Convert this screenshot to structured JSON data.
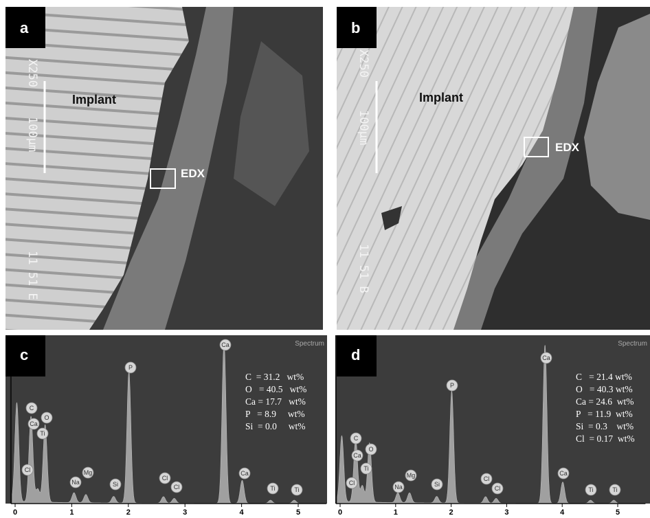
{
  "panels": [
    {
      "label": "a",
      "implant": "Implant",
      "edx": "EDX",
      "magnification": "X250",
      "scale": "100µm",
      "code": "11 51 E"
    },
    {
      "label": "b",
      "implant": "Implant",
      "edx": "EDX",
      "magnification": "X250",
      "scale": "100µm",
      "code": "11 51 B"
    }
  ],
  "spectra": [
    {
      "label": "c",
      "title": "Spectrum",
      "xlim": [
        -0.05,
        5.5
      ],
      "xticks": [
        0,
        1,
        2,
        3,
        4,
        5
      ],
      "peaks": [
        {
          "x": 0.03,
          "height": 60
        },
        {
          "x": 0.28,
          "height": 52
        },
        {
          "x": 0.4,
          "height": 8
        },
        {
          "x": 0.53,
          "height": 47
        },
        {
          "x": 1.04,
          "height": 6
        },
        {
          "x": 1.25,
          "height": 5
        },
        {
          "x": 1.74,
          "height": 4
        },
        {
          "x": 2.01,
          "height": 80
        },
        {
          "x": 2.62,
          "height": 4
        },
        {
          "x": 2.81,
          "height": 3
        },
        {
          "x": 3.69,
          "height": 98
        },
        {
          "x": 4.01,
          "height": 14
        },
        {
          "x": 4.51,
          "height": 2
        },
        {
          "x": 4.93,
          "height": 2
        }
      ],
      "peak_labels": [
        "Cl",
        "C",
        "Ca",
        "O",
        "Ti",
        "Na",
        "Mg",
        "Si",
        "P",
        "Cl",
        "Cl",
        "Ca",
        "Ca",
        "Ti",
        "Ti"
      ],
      "composition": [
        "C  = 31.2   wt%",
        "O   = 40.5   wt%",
        "Ca = 17.7   wt%",
        "P   = 8.9     wt%",
        "Si  = 0.0     wt%"
      ]
    },
    {
      "label": "d",
      "title": "Spectrum",
      "xlim": [
        -0.05,
        5.5
      ],
      "xticks": [
        0,
        1,
        2,
        3,
        4,
        5
      ],
      "peaks": [
        {
          "x": 0.03,
          "height": 40
        },
        {
          "x": 0.28,
          "height": 38
        },
        {
          "x": 0.4,
          "height": 10
        },
        {
          "x": 0.53,
          "height": 36
        },
        {
          "x": 1.04,
          "height": 6
        },
        {
          "x": 1.25,
          "height": 6
        },
        {
          "x": 1.74,
          "height": 4
        },
        {
          "x": 2.01,
          "height": 68
        },
        {
          "x": 2.62,
          "height": 4
        },
        {
          "x": 2.81,
          "height": 3
        },
        {
          "x": 3.69,
          "height": 96
        },
        {
          "x": 4.01,
          "height": 13
        },
        {
          "x": 4.51,
          "height": 2
        },
        {
          "x": 4.93,
          "height": 2
        }
      ],
      "peak_labels": [
        "Cl",
        "C",
        "Ca",
        "O",
        "Ti",
        "Na",
        "Mg",
        "Si",
        "P",
        "Cl",
        "Cl",
        "Ca",
        "Ca",
        "Ti",
        "Ti"
      ],
      "composition": [
        "C   = 21.4 wt%",
        "O   = 40.3 wt%",
        "Ca = 24.6  wt%",
        "P   = 11.9  wt%",
        "Si  = 0.3    wt%",
        "Cl  = 0.17  wt%"
      ]
    }
  ]
}
